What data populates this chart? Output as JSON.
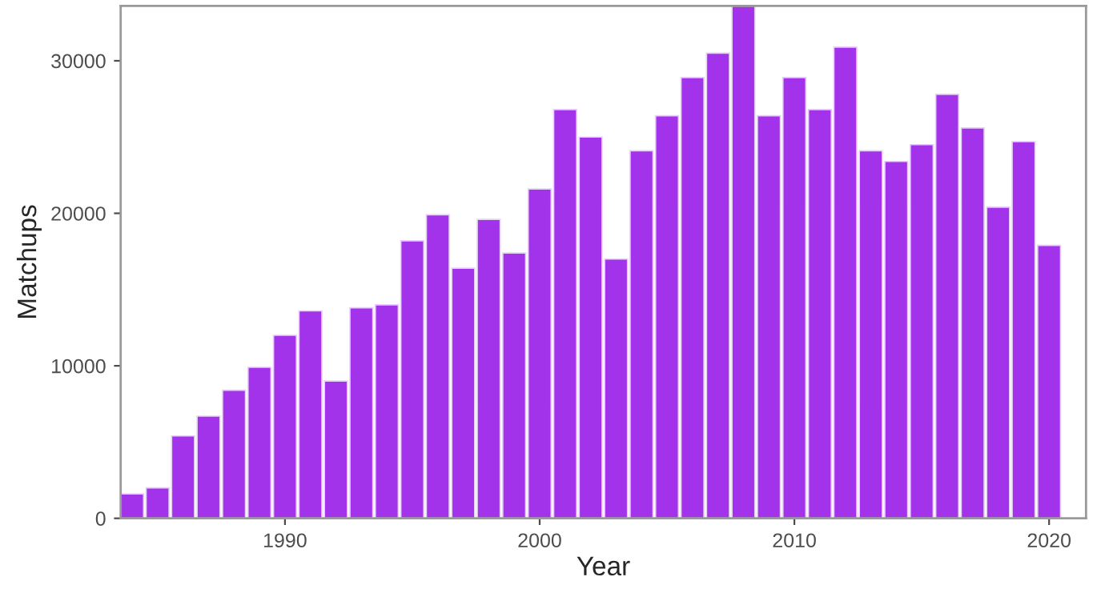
{
  "chart_data": {
    "type": "bar",
    "xlabel": "Year",
    "ylabel": "Matchups",
    "x": [
      1984,
      1985,
      1986,
      1987,
      1988,
      1989,
      1990,
      1991,
      1992,
      1993,
      1994,
      1995,
      1996,
      1997,
      1998,
      1999,
      2000,
      2001,
      2002,
      2003,
      2004,
      2005,
      2006,
      2007,
      2008,
      2009,
      2010,
      2011,
      2012,
      2013,
      2014,
      2015,
      2016,
      2017,
      2018,
      2019,
      2020
    ],
    "values": [
      1600,
      2000,
      5400,
      6700,
      8400,
      9900,
      12000,
      13600,
      9000,
      13800,
      14000,
      18200,
      19900,
      16400,
      19600,
      17400,
      21600,
      26800,
      25000,
      17000,
      24100,
      26400,
      28900,
      30500,
      33600,
      26400,
      28900,
      26800,
      30900,
      24100,
      23400,
      24500,
      27800,
      25600,
      20400,
      24700,
      17900
    ],
    "color": "#a233ea",
    "xlim": [
      1983.55,
      2021.45
    ],
    "xticks": [
      1990,
      2000,
      2010,
      2020
    ],
    "ylim": [
      0,
      33600
    ],
    "yticks": [
      0,
      10000,
      20000,
      30000
    ],
    "grid": false
  }
}
